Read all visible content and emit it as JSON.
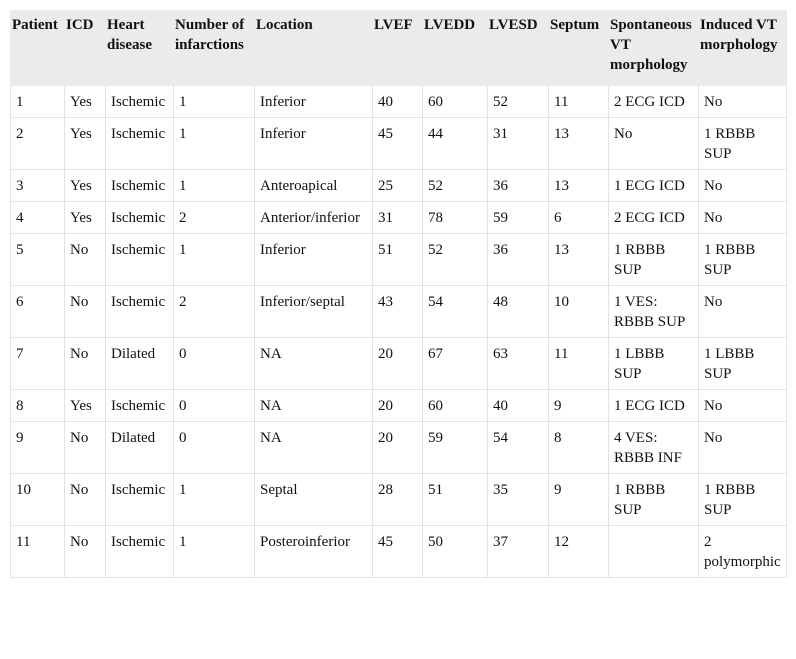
{
  "table": {
    "header": [
      "Patient",
      "ICD",
      "Heart disease",
      "Number of infarctions",
      "Location",
      "LVEF",
      "LVEDD",
      "LVESD",
      "Septum",
      "Spontaneous VT morphology",
      "Induced VT morphology"
    ],
    "rows": [
      [
        "1",
        "Yes",
        "Ischemic",
        "1",
        "Inferior",
        "40",
        "60",
        "52",
        "11",
        "2 ECG ICD",
        "No"
      ],
      [
        "2",
        "Yes",
        "Ischemic",
        "1",
        "Inferior",
        "45",
        "44",
        "31",
        "13",
        "No",
        "1 RBBB SUP"
      ],
      [
        "3",
        "Yes",
        "Ischemic",
        "1",
        "Anteroapical",
        "25",
        "52",
        "36",
        "13",
        "1 ECG ICD",
        "No"
      ],
      [
        "4",
        "Yes",
        "Ischemic",
        "2",
        "Anterior/inferior",
        "31",
        "78",
        "59",
        "6",
        "2 ECG ICD",
        "No"
      ],
      [
        "5",
        "No",
        "Ischemic",
        "1",
        "Inferior",
        "51",
        "52",
        "36",
        "13",
        "1 RBBB SUP",
        "1 RBBB SUP"
      ],
      [
        "6",
        "No",
        "Ischemic",
        "2",
        "Inferior/septal",
        "43",
        "54",
        "48",
        "10",
        "1 VES: RBBB SUP",
        "No"
      ],
      [
        "7",
        "No",
        "Dilated",
        "0",
        "NA",
        "20",
        "67",
        "63",
        "11",
        "1 LBBB SUP",
        "1 LBBB SUP"
      ],
      [
        "8",
        "Yes",
        "Ischemic",
        "0",
        "NA",
        "20",
        "60",
        "40",
        "9",
        "1 ECG ICD",
        "No"
      ],
      [
        "9",
        "No",
        "Dilated",
        "0",
        "NA",
        "20",
        "59",
        "54",
        "8",
        "4 VES: RBBB INF",
        "No"
      ],
      [
        "10",
        "No",
        "Ischemic",
        "1",
        "Septal",
        "28",
        "51",
        "35",
        "9",
        "1 RBBB SUP",
        "1 RBBB SUP"
      ],
      [
        "11",
        "No",
        "Ischemic",
        "1",
        "Posteroinferior",
        "45",
        "50",
        "37",
        "12",
        null,
        "2 polymorphic"
      ]
    ]
  }
}
